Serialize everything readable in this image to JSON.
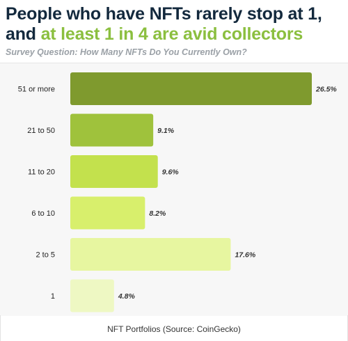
{
  "header": {
    "title_part1": "People who have NFTs rarely stop at 1,",
    "title_part2_prefix": "and ",
    "title_part2_accent": "at least 1 in 4 are avid collectors",
    "subtitle": "Survey Question: How Many NFTs Do You Currently Own?"
  },
  "caption": "NFT Portfolios (Source: CoinGecko)",
  "chart_data": {
    "type": "bar",
    "orientation": "horizontal",
    "categories": [
      "51 or more",
      "21 to 50",
      "11 to 20",
      "6 to 10",
      "2 to 5",
      "1"
    ],
    "values": [
      26.5,
      9.1,
      9.6,
      8.2,
      17.6,
      4.8
    ],
    "value_labels": [
      "26.5%",
      "9.1%",
      "9.6%",
      "8.2%",
      "17.6%",
      "4.8%"
    ],
    "unit": "%",
    "xlim": [
      0,
      26.5
    ],
    "grid": false,
    "colors": [
      "#7f9a2e",
      "#9fc23c",
      "#c3e14d",
      "#d8ef6c",
      "#e7f6a0",
      "#eef8c3"
    ]
  }
}
